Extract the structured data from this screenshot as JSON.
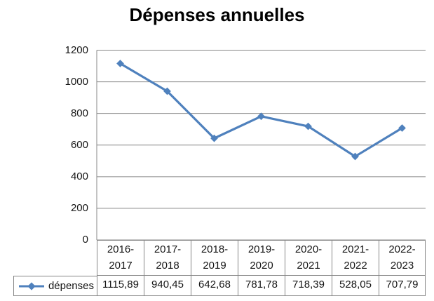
{
  "chart_data": {
    "type": "line",
    "title": "Dépenses annuelles",
    "categories": [
      "2016-2017",
      "2017-2018",
      "2018-2019",
      "2019-2020",
      "2020-2021",
      "2021-2022",
      "2022-2023"
    ],
    "series": [
      {
        "name": "dépenses",
        "values": [
          1115.89,
          940.45,
          642.68,
          781.78,
          718.39,
          528.05,
          707.79
        ],
        "values_display": [
          "1115,89",
          "940,45",
          "642,68",
          "781,78",
          "718,39",
          "528,05",
          "707,79"
        ],
        "color": "#4F81BD",
        "marker": "diamond"
      }
    ],
    "xlabel": "",
    "ylabel": "",
    "y_ticks": [
      0,
      200,
      400,
      600,
      800,
      1000,
      1200
    ],
    "ylim": [
      0,
      1200
    ],
    "grid": true,
    "legend_position": "bottom-table-left",
    "colors": {
      "line": "#4F81BD",
      "gridline": "#878787",
      "table_border": "#868686",
      "text": "#161616",
      "title_text": "#000000",
      "background": "#ffffff"
    }
  }
}
